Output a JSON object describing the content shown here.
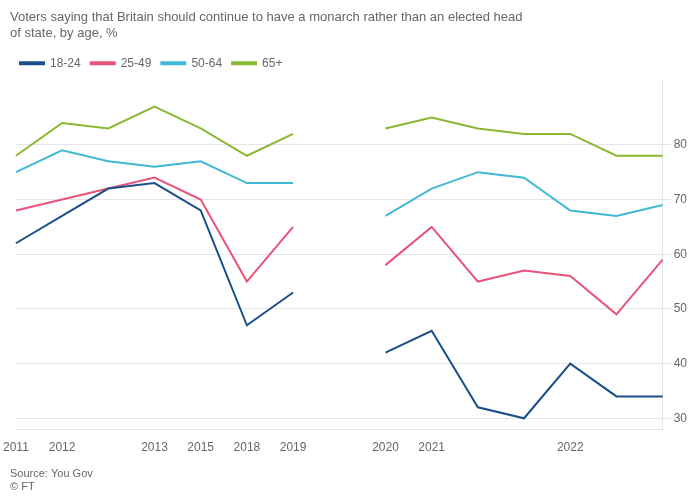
{
  "chart_data": {
    "type": "line",
    "title": [
      "Voters saying that Britain should continue to have a monarch rather than an elected head",
      "of state, by age, %"
    ],
    "annotations": [
      "Source: You Gov",
      "© FT"
    ],
    "categories": [
      "2011",
      "2012",
      null,
      "2013",
      "2015",
      "2018",
      "2019",
      null,
      "2020",
      "2021",
      null,
      null,
      "2022",
      null,
      null
    ],
    "series": [
      {
        "name": "18-24",
        "color": "#1a4f8a",
        "values": [
          62,
          67,
          72,
          73,
          68,
          47,
          53,
          null,
          42,
          46,
          32,
          30,
          40,
          34,
          34
        ]
      },
      {
        "name": "25-49",
        "color": "#e8537a",
        "values": [
          68,
          70,
          72,
          74,
          70,
          55,
          65,
          null,
          58,
          65,
          55,
          57,
          56,
          49,
          59
        ]
      },
      {
        "name": "50-64",
        "color": "#41b8d5",
        "values": [
          75,
          79,
          77,
          76,
          77,
          73,
          73,
          null,
          67,
          72,
          75,
          74,
          68,
          67,
          69
        ]
      },
      {
        "name": "65+",
        "color": "#8ab832",
        "values": [
          78,
          84,
          83,
          87,
          83,
          78,
          82,
          null,
          83,
          85,
          83,
          82,
          82,
          78,
          78
        ]
      }
    ],
    "ylim": [
      28,
      92
    ],
    "yticks": [
      30,
      40,
      50,
      60,
      70,
      80
    ],
    "grid": true,
    "legend": "top"
  }
}
